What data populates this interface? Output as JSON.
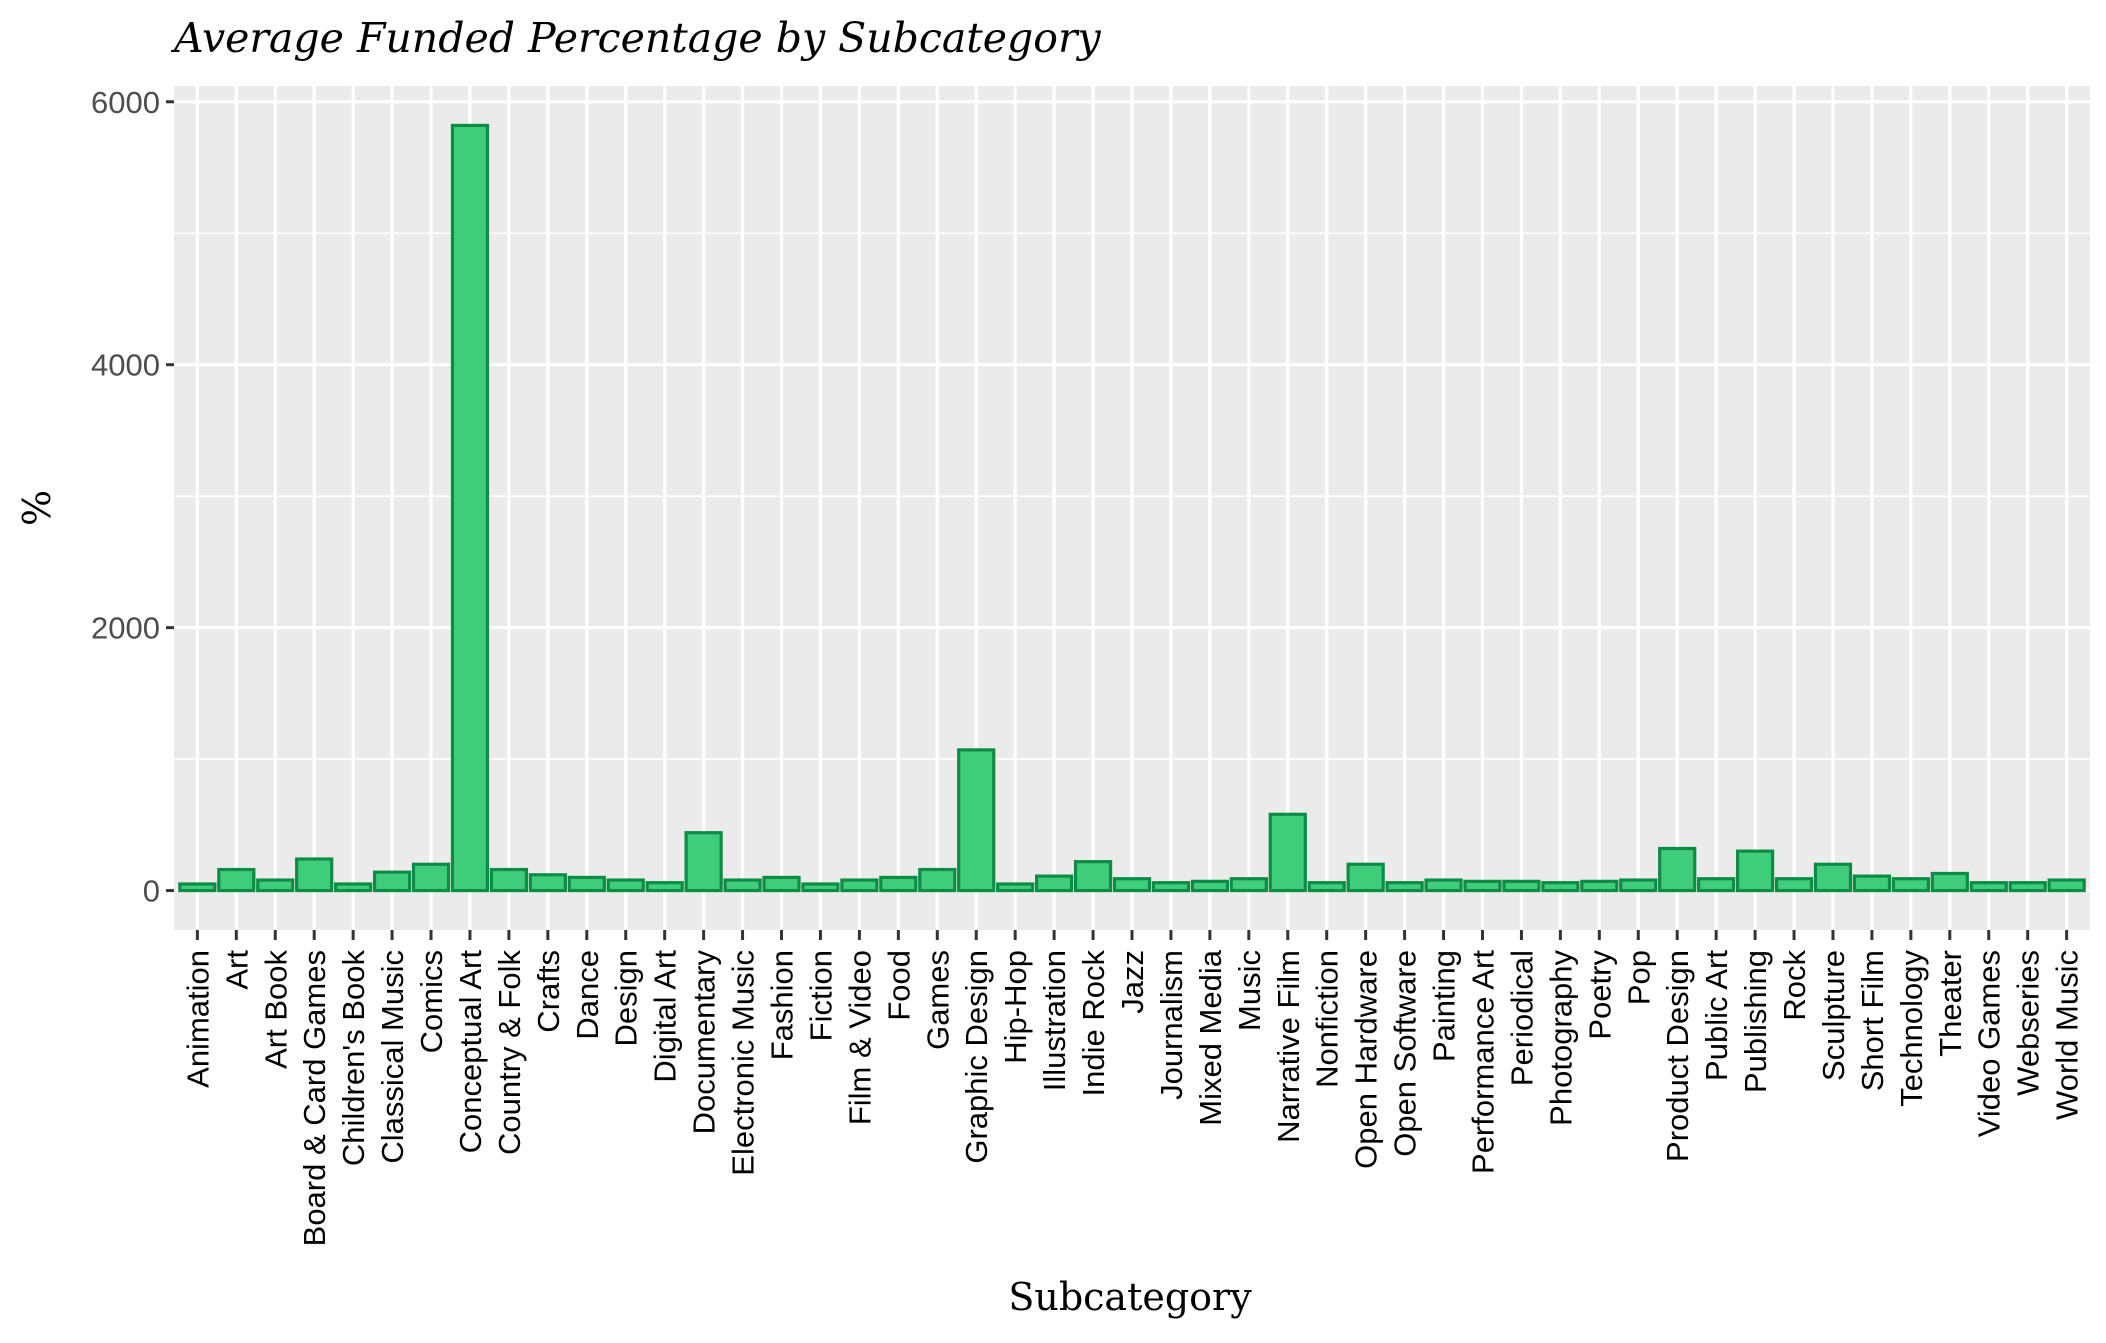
{
  "chart_data": {
    "type": "bar",
    "title": "Average Funded Percentage by Subcategory",
    "xlabel": "Subcategory",
    "ylabel": "%",
    "ylim": [
      -300,
      6120
    ],
    "yticks": [
      0,
      2000,
      4000,
      6000
    ],
    "yticklabels": [
      "0",
      "2000",
      "4000",
      "6000"
    ],
    "grid": true,
    "legend": "none",
    "colors": {
      "bar_fill": "#3fcc7b",
      "bar_stroke": "#0e8c45",
      "panel": "#ebebeb",
      "grid": "#ffffff"
    },
    "categories": [
      "Animation",
      "Art",
      "Art Book",
      "Board & Card Games",
      "Children's Book",
      "Classical Music",
      "Comics",
      "Conceptual Art",
      "Country & Folk",
      "Crafts",
      "Dance",
      "Design",
      "Digital Art",
      "Documentary",
      "Electronic Music",
      "Fashion",
      "Fiction",
      "Film & Video",
      "Food",
      "Games",
      "Graphic Design",
      "Hip-Hop",
      "Illustration",
      "Indie Rock",
      "Jazz",
      "Journalism",
      "Mixed Media",
      "Music",
      "Narrative Film",
      "Nonfiction",
      "Open Hardware",
      "Open Software",
      "Painting",
      "Performance Art",
      "Periodical",
      "Photography",
      "Poetry",
      "Pop",
      "Product Design",
      "Public Art",
      "Publishing",
      "Rock",
      "Sculpture",
      "Short Film",
      "Technology",
      "Theater",
      "Video Games",
      "Webseries",
      "World Music"
    ],
    "values": [
      50,
      160,
      80,
      240,
      50,
      140,
      200,
      5820,
      160,
      120,
      100,
      80,
      60,
      440,
      80,
      100,
      50,
      80,
      100,
      160,
      1070,
      50,
      110,
      220,
      90,
      60,
      70,
      90,
      580,
      60,
      200,
      60,
      80,
      70,
      70,
      60,
      70,
      80,
      320,
      90,
      300,
      90,
      200,
      110,
      90,
      130,
      60,
      60,
      80
    ]
  }
}
